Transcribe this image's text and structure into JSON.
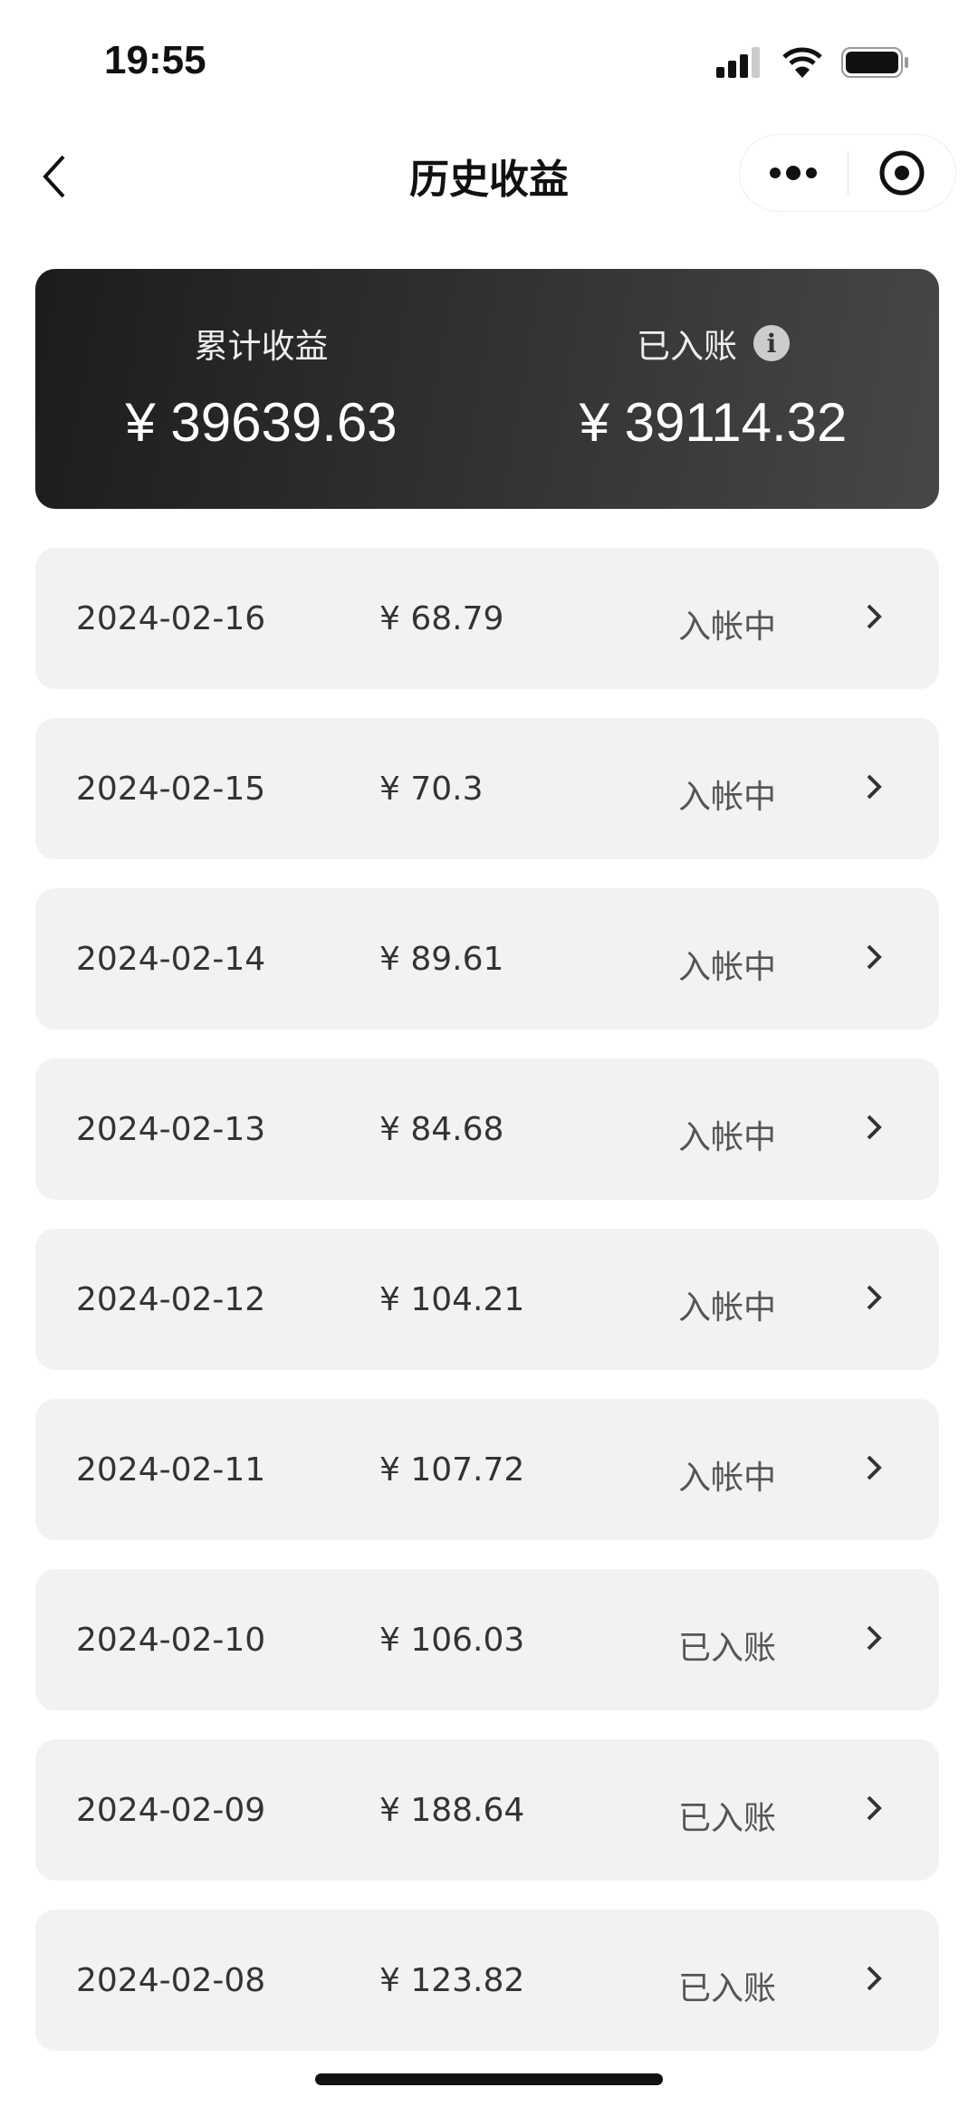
{
  "status_bar": {
    "time": "19:55"
  },
  "nav": {
    "title": "历史收益"
  },
  "summary": {
    "total_label": "累计收益",
    "total_amount": "¥ 39639.63",
    "credited_label": "已入账",
    "credited_amount": "¥ 39114.32"
  },
  "records": [
    {
      "date": "2024-02-16",
      "amount": "¥ 68.79",
      "status": "入帐中"
    },
    {
      "date": "2024-02-15",
      "amount": "¥ 70.3",
      "status": "入帐中"
    },
    {
      "date": "2024-02-14",
      "amount": "¥ 89.61",
      "status": "入帐中"
    },
    {
      "date": "2024-02-13",
      "amount": "¥ 84.68",
      "status": "入帐中"
    },
    {
      "date": "2024-02-12",
      "amount": "¥ 104.21",
      "status": "入帐中"
    },
    {
      "date": "2024-02-11",
      "amount": "¥ 107.72",
      "status": "入帐中"
    },
    {
      "date": "2024-02-10",
      "amount": "¥ 106.03",
      "status": "已入账"
    },
    {
      "date": "2024-02-09",
      "amount": "¥ 188.64",
      "status": "已入账"
    },
    {
      "date": "2024-02-08",
      "amount": "¥ 123.82",
      "status": "已入账"
    }
  ]
}
